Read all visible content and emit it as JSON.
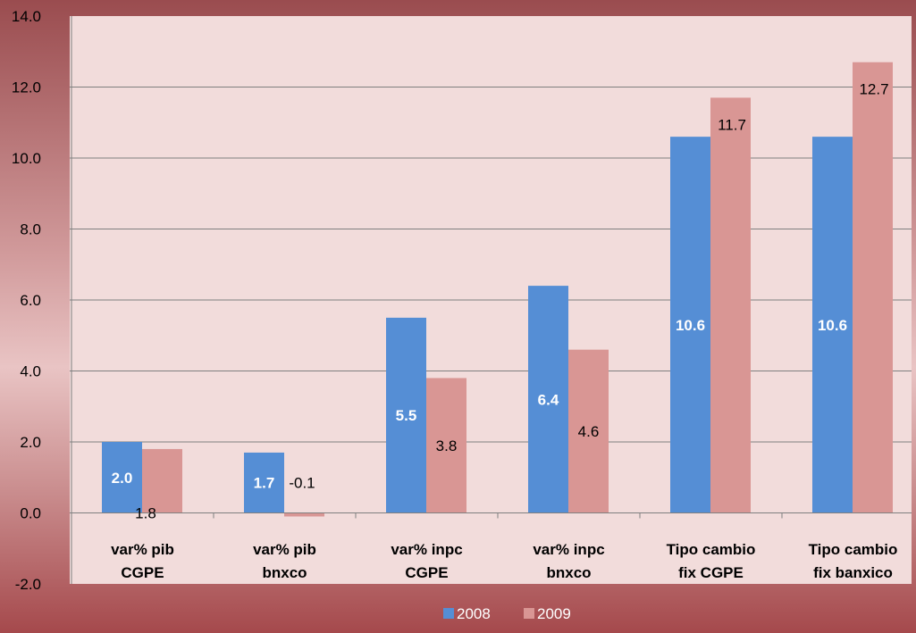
{
  "chart_data": {
    "type": "bar",
    "categories": [
      [
        "var% pib",
        "CGPE"
      ],
      [
        "var% pib",
        "bnxco"
      ],
      [
        "var% inpc",
        "CGPE"
      ],
      [
        "var% inpc",
        "bnxco"
      ],
      [
        "Tipo cambio",
        "fix CGPE"
      ],
      [
        "Tipo cambio",
        "fix banxico"
      ]
    ],
    "series": [
      {
        "name": "2008",
        "values": [
          2.0,
          1.7,
          5.5,
          6.4,
          10.6,
          10.6
        ],
        "labels": [
          "2.0",
          "1.7",
          "5.5",
          "6.4",
          "10.6",
          "10.6"
        ]
      },
      {
        "name": "2009",
        "values": [
          1.8,
          -0.1,
          3.8,
          4.6,
          11.7,
          12.7
        ],
        "labels": [
          "1.8",
          "-0.1",
          "3.8",
          "4.6",
          "11.7",
          "12.7"
        ]
      }
    ],
    "ylim": [
      -2,
      14
    ],
    "yticks": [
      "-2.0",
      "0.0",
      "2.0",
      "4.0",
      "6.0",
      "8.0",
      "10.0",
      "12.0",
      "14.0"
    ],
    "grid": true,
    "legend": "bottom",
    "colors": {
      "2008": "#558ed5",
      "2009": "#d99694",
      "plot_bg": "#f2dcdb",
      "grid": "#7f7f7f"
    },
    "title": "",
    "xlabel": "",
    "ylabel": ""
  }
}
